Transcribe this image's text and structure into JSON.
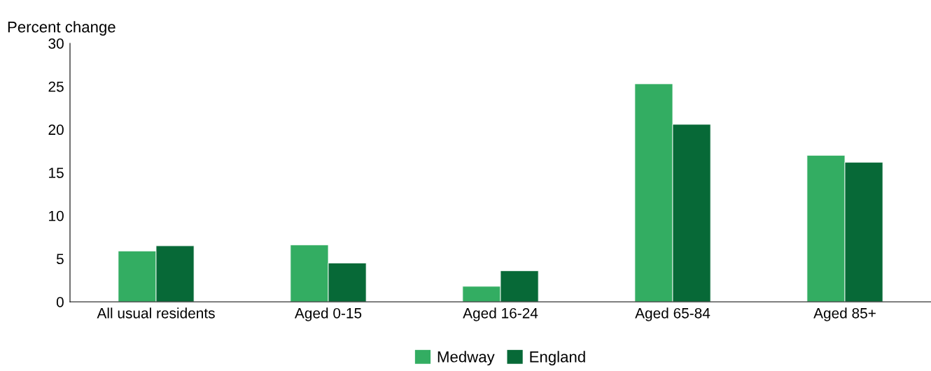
{
  "chart_data": {
    "type": "bar",
    "ylabel": "Percent change",
    "categories": [
      "All usual residents",
      "Aged 0-15",
      "Aged 16-24",
      "Aged 65-84",
      "Aged 85+"
    ],
    "series": [
      {
        "name": "Medway",
        "color": "#33ad62",
        "values": [
          5.9,
          6.6,
          1.8,
          25.3,
          17.0
        ]
      },
      {
        "name": "England",
        "color": "#076937",
        "values": [
          6.5,
          4.5,
          3.6,
          20.6,
          16.2
        ]
      }
    ],
    "ylim": [
      0,
      30
    ],
    "yticks": [
      0,
      5,
      10,
      15,
      20,
      25,
      30
    ],
    "grid": false,
    "legend": "bottom"
  }
}
